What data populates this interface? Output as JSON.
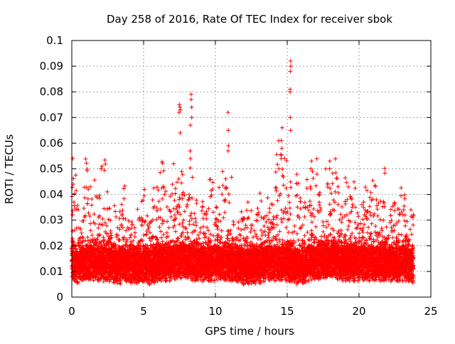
{
  "chart_data": {
    "type": "scatter",
    "title": "Day 258 of 2016, Rate Of TEC Index for receiver sbok",
    "xlabel": "GPS time / hours",
    "ylabel": "ROTI / TECUs",
    "xlim": [
      0,
      25
    ],
    "ylim": [
      0,
      0.1
    ],
    "x_ticks": [
      0,
      5,
      10,
      15,
      20,
      25
    ],
    "x_tick_labels": [
      "0",
      "5",
      "10",
      "15",
      "20",
      "25"
    ],
    "y_ticks": [
      0,
      0.01,
      0.02,
      0.03,
      0.04,
      0.05,
      0.06,
      0.07,
      0.08,
      0.09,
      0.1
    ],
    "y_tick_labels": [
      "0",
      "0.01",
      "0.02",
      "0.03",
      "0.04",
      "0.05",
      "0.06",
      "0.07",
      "0.08",
      "0.09",
      "0.1"
    ],
    "grid": true,
    "marker": "+",
    "marker_color": "#ff0000",
    "data_extent_hours": [
      0,
      23.8
    ],
    "envelope": {
      "hours": [
        0.0,
        0.5,
        1.0,
        1.5,
        2.0,
        2.5,
        3.0,
        3.5,
        4.0,
        4.5,
        5.0,
        5.5,
        6.0,
        6.5,
        7.0,
        7.5,
        8.0,
        8.5,
        9.0,
        9.5,
        10.0,
        10.5,
        11.0,
        11.5,
        12.0,
        12.5,
        13.0,
        13.5,
        14.0,
        14.5,
        15.0,
        15.5,
        16.0,
        16.5,
        17.0,
        17.5,
        18.0,
        18.5,
        19.0,
        19.5,
        20.0,
        20.5,
        21.0,
        21.5,
        22.0,
        22.5,
        23.0,
        23.5
      ],
      "upper_roti": [
        0.053,
        0.034,
        0.049,
        0.046,
        0.051,
        0.041,
        0.037,
        0.039,
        0.034,
        0.036,
        0.041,
        0.036,
        0.046,
        0.048,
        0.051,
        0.048,
        0.047,
        0.042,
        0.041,
        0.038,
        0.045,
        0.051,
        0.047,
        0.033,
        0.031,
        0.036,
        0.034,
        0.038,
        0.048,
        0.053,
        0.062,
        0.042,
        0.038,
        0.052,
        0.045,
        0.048,
        0.053,
        0.046,
        0.044,
        0.039,
        0.047,
        0.037,
        0.048,
        0.043,
        0.041,
        0.038,
        0.039,
        0.037
      ],
      "base_roti": [
        0.012,
        0.011,
        0.012,
        0.012,
        0.012,
        0.012,
        0.011,
        0.011,
        0.011,
        0.011,
        0.011,
        0.011,
        0.012,
        0.012,
        0.012,
        0.013,
        0.013,
        0.012,
        0.012,
        0.012,
        0.012,
        0.012,
        0.012,
        0.011,
        0.011,
        0.011,
        0.011,
        0.012,
        0.012,
        0.012,
        0.012,
        0.011,
        0.011,
        0.012,
        0.012,
        0.013,
        0.013,
        0.013,
        0.012,
        0.012,
        0.012,
        0.012,
        0.012,
        0.012,
        0.012,
        0.012,
        0.012,
        0.011
      ]
    },
    "spikes": [
      {
        "hour": 0.1,
        "values": [
          0.037,
          0.044,
          0.054
        ]
      },
      {
        "hour": 2.1,
        "values": [
          0.05,
          0.051
        ]
      },
      {
        "hour": 7.5,
        "values": [
          0.064,
          0.072,
          0.073,
          0.074,
          0.075
        ]
      },
      {
        "hour": 8.3,
        "values": [
          0.054,
          0.057,
          0.067,
          0.07,
          0.074,
          0.077,
          0.079
        ]
      },
      {
        "hour": 10.9,
        "values": [
          0.057,
          0.059,
          0.065,
          0.072
        ]
      },
      {
        "hour": 14.6,
        "values": [
          0.054,
          0.058,
          0.061,
          0.066
        ]
      },
      {
        "hour": 15.2,
        "values": [
          0.065,
          0.07,
          0.08,
          0.081,
          0.088,
          0.09,
          0.092
        ]
      },
      {
        "hour": 16.7,
        "values": [
          0.049,
          0.05,
          0.053
        ]
      },
      {
        "hour": 18.0,
        "values": [
          0.05,
          0.053
        ]
      }
    ]
  }
}
